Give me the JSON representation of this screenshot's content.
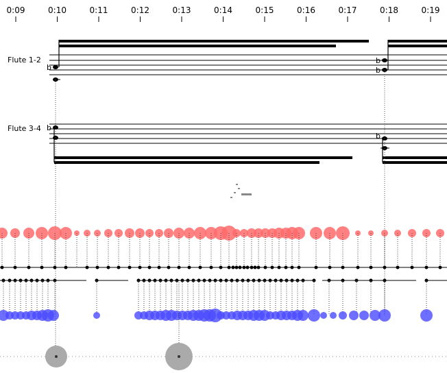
{
  "timeline": {
    "ticks": [
      "0:09",
      "0:10",
      "0:11",
      "0:12",
      "0:13",
      "0:14",
      "0:15",
      "0:16",
      "0:17",
      "0:18",
      "0:19"
    ]
  },
  "staves": [
    {
      "label": "Flute 1-2"
    },
    {
      "label": "Flute 3-4"
    }
  ],
  "accidental_flat": "b",
  "colors": {
    "staff_lines": "#000000",
    "red_events": "#ff6b6b",
    "blue_events": "#4a4aff",
    "gray_events": "#aaaaaa",
    "guide_dots": "#888888"
  }
}
